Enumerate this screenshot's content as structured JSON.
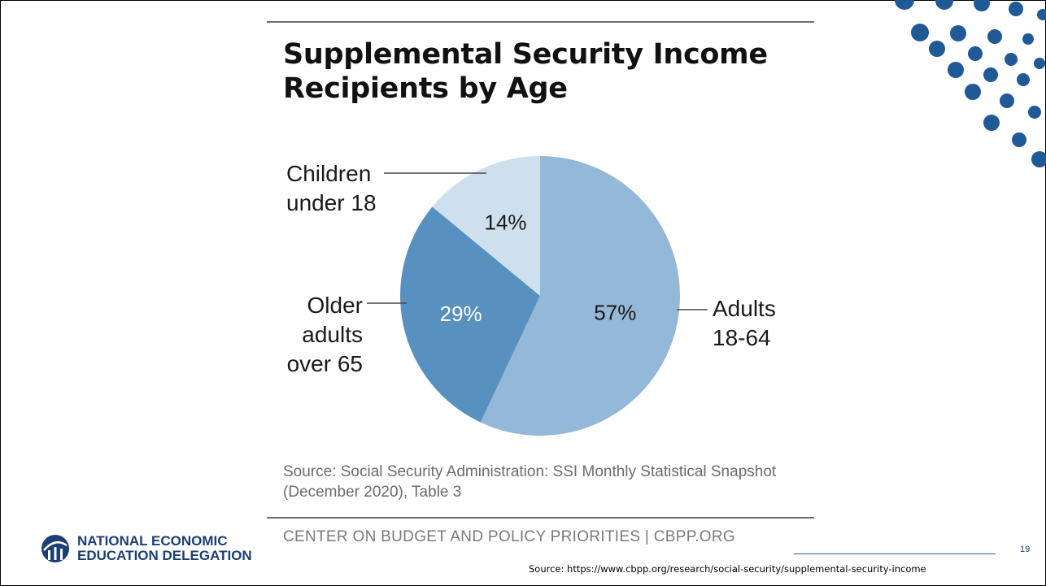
{
  "slide": {
    "page_number": "19",
    "source_url": "Source: https://www.cbpp.org/research/social-security/supplemental-security-income",
    "logo": {
      "line1": "NATIONAL ECONOMIC",
      "line2": "EDUCATION DELEGATION"
    },
    "org_credit": "CENTER ON BUDGET AND POLICY PRIORITIES | CBPP.ORG",
    "decoration_color": "#1f5a96"
  },
  "chart_data": {
    "type": "pie",
    "title": "Supplemental Security Income Recipients by Age",
    "source": "Source: Social Security Administration: SSI Monthly Statistical Snapshot (December 2020), Table 3",
    "slices": [
      {
        "label": "Adults 18-64",
        "value": 57,
        "display": "57%",
        "color": "#94b8d8",
        "label_color": "#1a1a1a"
      },
      {
        "label": "Older adults over 65",
        "value": 29,
        "display": "29%",
        "color": "#5890c0",
        "label_color": "#ffffff"
      },
      {
        "label": "Children under 18",
        "value": 14,
        "display": "14%",
        "color": "#cedfee",
        "label_color": "#1a1a1a"
      }
    ]
  }
}
